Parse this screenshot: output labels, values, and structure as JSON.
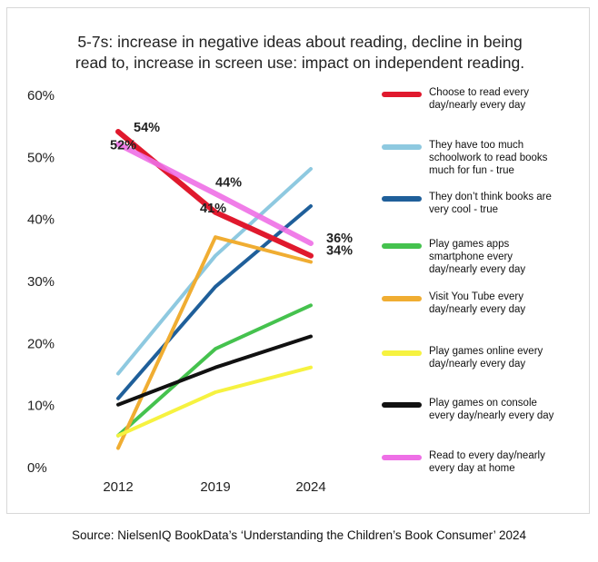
{
  "title_lines": [
    "5-7s: increase in negative ideas about reading, decline in being",
    "read to, increase in screen use: impact on independent reading."
  ],
  "source": "Source: NielsenIQ BookData’s ‘Understanding the Children’s Book Consumer’ 2024",
  "chart_data": {
    "type": "line",
    "title": "5-7s: increase in negative ideas about reading, decline in being read to, increase in screen use: impact on independent reading.",
    "x": [
      "2012",
      "2019",
      "2024"
    ],
    "ylim": [
      0,
      60
    ],
    "yticks": [
      "0%",
      "10%",
      "20%",
      "30%",
      "40%",
      "50%",
      "60%"
    ],
    "grid": false,
    "legend_position": "right",
    "series": [
      {
        "name": "Choose to read every\nday/nearly every day",
        "color": "#e0192d",
        "values": [
          54,
          41,
          34
        ],
        "labels": [
          "54%",
          "41%",
          "34%"
        ]
      },
      {
        "name": "They have too much\nschoolwork to read books\nmuch for fun - true",
        "color": "#8ec9e0",
        "values": [
          15,
          34,
          48
        ]
      },
      {
        "name": "They don’t think books are\nvery cool - true",
        "color": "#1f5f9a",
        "values": [
          11,
          29,
          42
        ]
      },
      {
        "name": "Play games apps\nsmartphone every\nday/nearly every day",
        "color": "#45c24e",
        "values": [
          5,
          19,
          26
        ]
      },
      {
        "name": "Visit You Tube every\nday/nearly every day",
        "color": "#f0ad32",
        "values": [
          3,
          37,
          33
        ]
      },
      {
        "name": "Play games online every\nday/nearly every day",
        "color": "#f6f240",
        "values": [
          5,
          12,
          16
        ]
      },
      {
        "name": "Play games on console\nevery day/nearly every day",
        "color": "#111111",
        "values": [
          10,
          16,
          21
        ]
      },
      {
        "name": "Read to every day/nearly\nevery day at home",
        "color": "#ee6fe6",
        "values": [
          52,
          44,
          36
        ],
        "labels": [
          "52%",
          "44%",
          "36%"
        ]
      }
    ]
  }
}
